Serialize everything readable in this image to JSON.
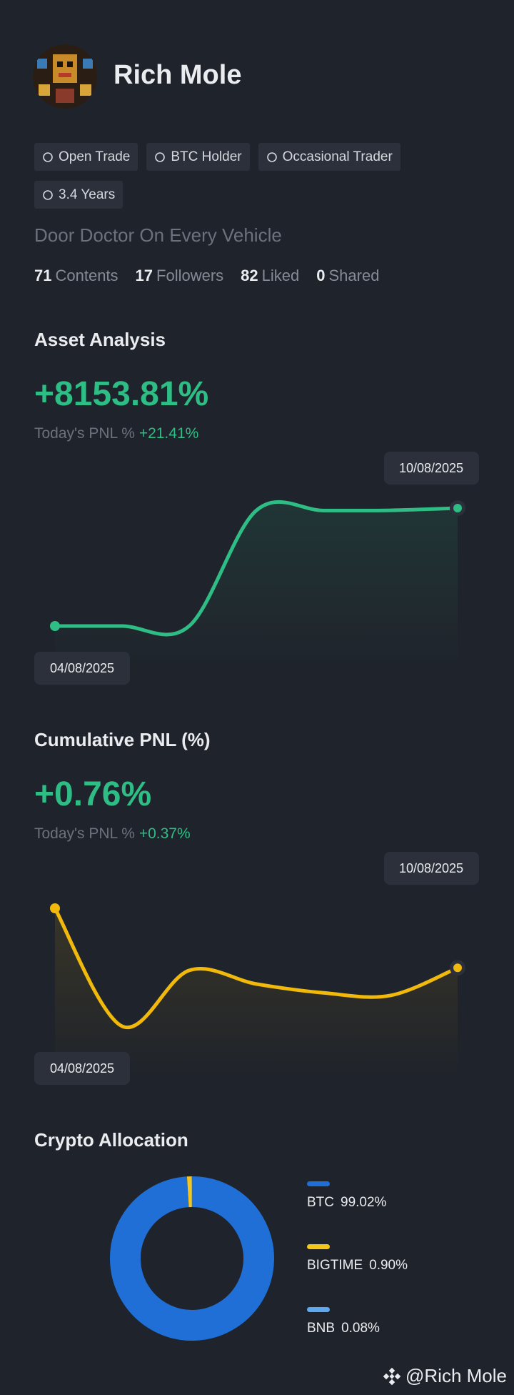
{
  "profile": {
    "name": "Rich Mole",
    "tags": [
      "Open Trade",
      "BTC Holder",
      "Occasional Trader",
      "3.4 Years"
    ],
    "bio": "Door Doctor On Every Vehicle",
    "stats": [
      {
        "value": 71,
        "label": "Contents"
      },
      {
        "value": 17,
        "label": "Followers"
      },
      {
        "value": 82,
        "label": "Liked"
      },
      {
        "value": 0,
        "label": "Shared"
      }
    ]
  },
  "chart_data": [
    {
      "type": "line",
      "title": "Asset Analysis",
      "headline": "+8153.81%",
      "today_label": "Today's PNL %",
      "today_value": "+21.41%",
      "x": [
        "04/08/2025",
        null,
        null,
        null,
        null,
        null,
        "10/08/2025"
      ],
      "series": [
        {
          "color": "#2ebd85",
          "values": [
            0,
            0,
            0,
            7990,
            7990,
            8000,
            8153.81
          ]
        }
      ]
    },
    {
      "type": "line",
      "title": "Cumulative PNL (%)",
      "headline": "+0.76%",
      "today_label": "Today's PNL %",
      "today_value": "+0.37%",
      "x": [
        "04/08/2025",
        null,
        null,
        null,
        null,
        null,
        "10/08/2025"
      ],
      "series": [
        {
          "color": "#f0b90b",
          "values": [
            1.9,
            -0.36,
            0.71,
            0.45,
            0.28,
            0.23,
            0.76
          ]
        }
      ]
    },
    {
      "type": "pie",
      "title": "Crypto Allocation",
      "donut": true,
      "categories": [
        "BTC",
        "BIGTIME",
        "BNB"
      ],
      "values": [
        99.02,
        0.9,
        0.08
      ],
      "value_labels": [
        "99.02%",
        "0.90%",
        "0.08%"
      ],
      "colors": [
        "#1f6fd6",
        "#f5c518",
        "#5ea8f0"
      ]
    }
  ],
  "footer": "@Rich Mole"
}
